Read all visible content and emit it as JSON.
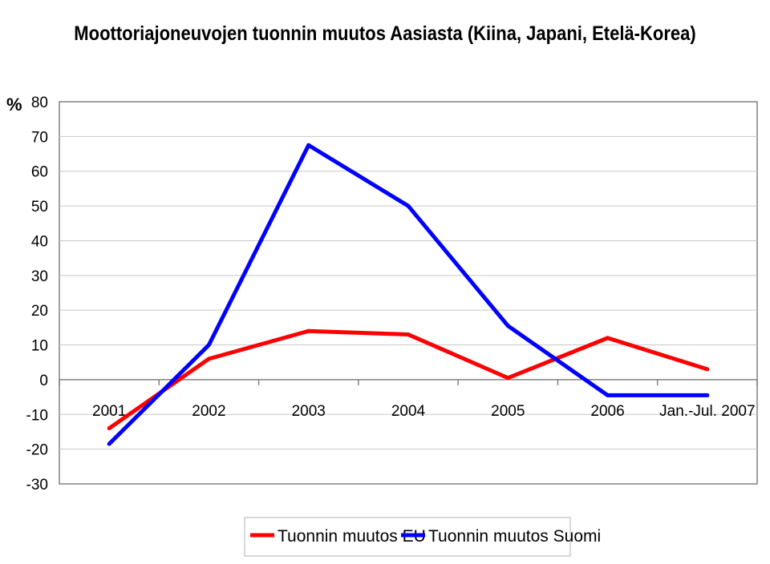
{
  "chart_data": {
    "type": "line",
    "title": "Moottoriajoneuvojen tuonnin muutos Aasiasta (Kiina, Japani, Etelä-Korea)",
    "ylabel": "%",
    "xlabel": "",
    "ylim": [
      -30,
      80
    ],
    "yticks": [
      80,
      70,
      60,
      50,
      40,
      30,
      20,
      10,
      0,
      -10,
      -20,
      -30
    ],
    "categories": [
      "2001",
      "2002",
      "2003",
      "2004",
      "2005",
      "2006",
      "Jan.-Jul. 2007"
    ],
    "series": [
      {
        "name": "Tuonnin muutos EU",
        "color": "#ff0000",
        "values": [
          -14,
          6,
          14,
          13,
          0.5,
          12,
          3
        ]
      },
      {
        "name": "Tuonnin muutos Suomi",
        "color": "#0000ff",
        "values": [
          -18.5,
          10,
          67.5,
          50,
          15.5,
          -4.5,
          -4.5
        ]
      }
    ],
    "grid": true,
    "legend_position": "bottom"
  }
}
